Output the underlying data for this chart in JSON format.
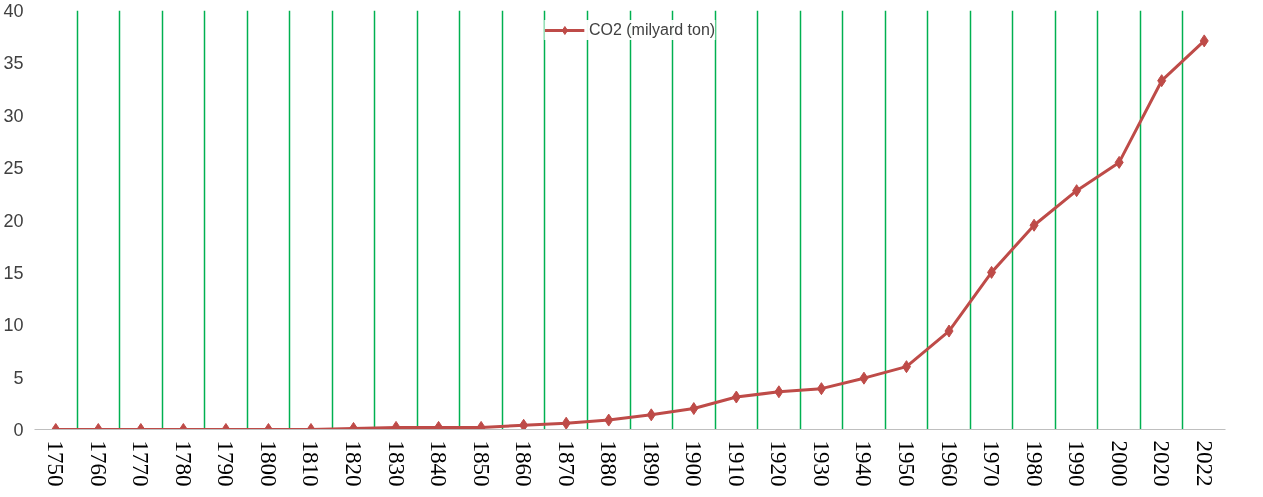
{
  "chart_data": {
    "type": "line",
    "categories": [
      "1750",
      "1760",
      "1770",
      "1780",
      "1790",
      "1800",
      "1810",
      "1820",
      "1830",
      "1840",
      "1850",
      "1860",
      "1870",
      "1880",
      "1890",
      "1900",
      "1910",
      "1920",
      "1930",
      "1940",
      "1950",
      "1960",
      "1970",
      "1980",
      "1990",
      "2000",
      "2020",
      "2022"
    ],
    "series": [
      {
        "name": "CO2 (milyard ton)",
        "color": "#be4b48",
        "values": [
          0,
          0,
          0,
          0,
          0,
          0,
          0,
          0.1,
          0.2,
          0.2,
          0.2,
          0.4,
          0.6,
          0.9,
          1.4,
          2,
          3.1,
          3.6,
          3.9,
          4.9,
          6,
          9.4,
          15,
          19.5,
          22.8,
          25.5,
          33.3,
          37.1
        ]
      }
    ],
    "ylim": [
      0,
      40
    ],
    "yticks": [
      0,
      5,
      10,
      15,
      20,
      25,
      30,
      35,
      40
    ],
    "grid": "x",
    "legend": "top",
    "marker": "diamond",
    "line_style": "solid"
  }
}
